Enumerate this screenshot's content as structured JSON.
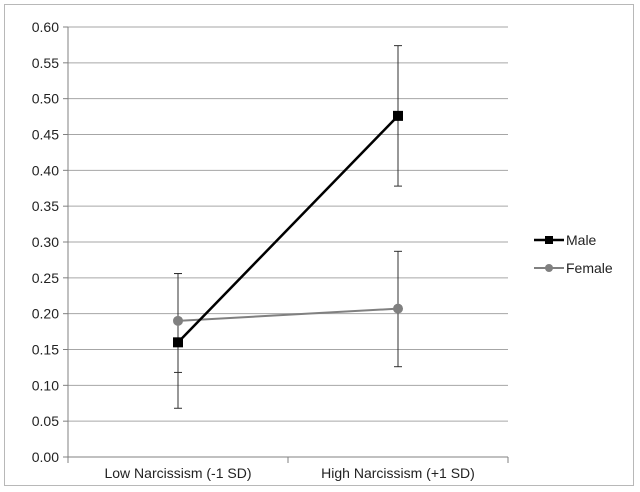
{
  "chart_data": {
    "type": "line",
    "categories": [
      "Low Narcissism (-1 SD)",
      "High Narcissism (+1 SD)"
    ],
    "ylim": [
      0,
      0.6
    ],
    "yticks": [
      "0.00",
      "0.05",
      "0.10",
      "0.15",
      "0.20",
      "0.25",
      "0.30",
      "0.35",
      "0.40",
      "0.45",
      "0.50",
      "0.55",
      "0.60"
    ],
    "grid": true,
    "legend_position": "right",
    "series": [
      {
        "name": "Male",
        "values": [
          0.16,
          0.476
        ],
        "error_low": [
          0.068,
          0.378
        ],
        "error_high": [
          0.256,
          0.574
        ],
        "color": "#000000",
        "marker": "square"
      },
      {
        "name": "Female",
        "values": [
          0.19,
          0.207
        ],
        "error_low": [
          0.118,
          0.126
        ],
        "error_high": [
          0.256,
          0.287
        ],
        "color": "#808080",
        "marker": "circle"
      }
    ]
  }
}
